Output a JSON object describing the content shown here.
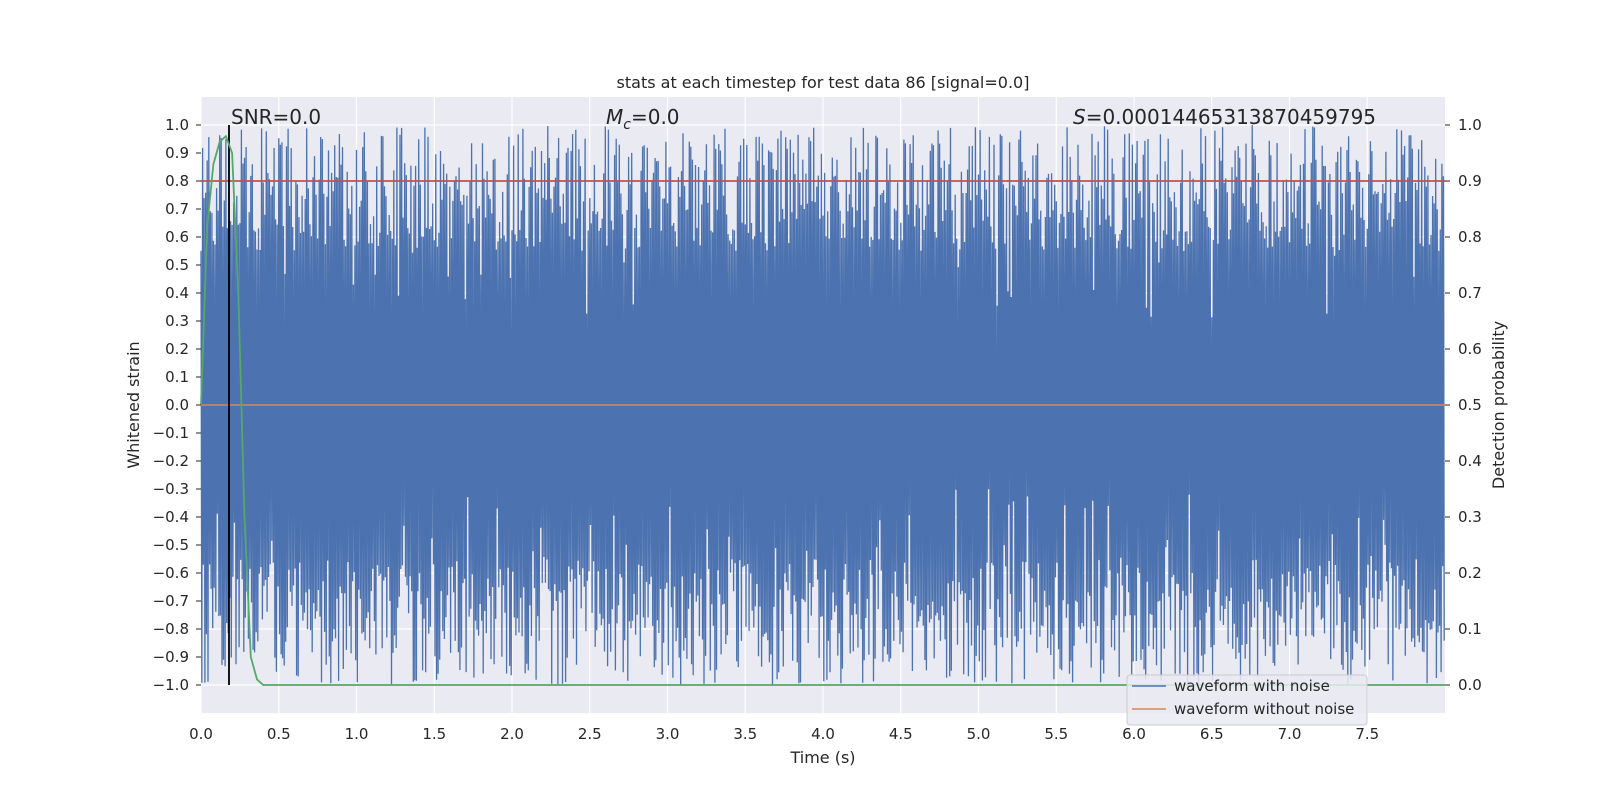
{
  "chart_data": {
    "type": "line",
    "title": "stats at each timestep for test data 86 [signal=0.0]",
    "xlabel": "Time (s)",
    "ylabel": "Whitened strain",
    "ylabel_right": "Detection probability",
    "xlim": [
      0.0,
      8.0
    ],
    "ylim": [
      -1.1,
      1.1
    ],
    "ylim_right": [
      -0.05,
      1.05
    ],
    "x_ticks": [
      0.0,
      0.5,
      1.0,
      1.5,
      2.0,
      2.5,
      3.0,
      3.5,
      4.0,
      4.5,
      5.0,
      5.5,
      6.0,
      6.5,
      7.0,
      7.5
    ],
    "x_tick_labels": [
      "0.0",
      "0.5",
      "1.0",
      "1.5",
      "2.0",
      "2.5",
      "3.0",
      "3.5",
      "4.0",
      "4.5",
      "5.0",
      "5.5",
      "6.0",
      "6.5",
      "7.0",
      "7.5"
    ],
    "y_ticks": [
      1.0,
      0.9,
      0.8,
      0.7,
      0.6,
      0.5,
      0.4,
      0.3,
      0.2,
      0.1,
      0.0,
      -0.1,
      -0.2,
      -0.3,
      -0.4,
      -0.5,
      -0.6,
      -0.7,
      -0.8,
      -0.9,
      -1.0
    ],
    "y_tick_labels": [
      "1.0",
      "0.9",
      "0.8",
      "0.7",
      "0.6",
      "0.5",
      "0.4",
      "0.3",
      "0.2",
      "0.1",
      "0.0",
      "−0.1",
      "−0.2",
      "−0.3",
      "−0.4",
      "−0.5",
      "−0.6",
      "−0.7",
      "−0.8",
      "−0.9",
      "−1.0"
    ],
    "y_right_ticks": [
      1.0,
      0.9,
      0.8,
      0.7,
      0.6,
      0.5,
      0.4,
      0.3,
      0.2,
      0.1,
      0.0
    ],
    "y_right_tick_labels": [
      "1.0",
      "0.9",
      "0.8",
      "0.7",
      "0.6",
      "0.5",
      "0.4",
      "0.3",
      "0.2",
      "0.1",
      "0.0"
    ],
    "annotations": {
      "snr": "SNR=0.0",
      "mc_symbol": "M",
      "mc_sub": "c",
      "mc_value": "=0.0",
      "s_symbol": "S",
      "s_value": "=0.00014465313870459795"
    },
    "threshold_right": 0.9,
    "marker_time": 0.18,
    "legend": {
      "position": "lower-right",
      "entries": [
        {
          "label": "waveform with noise",
          "color": "#4c72b0"
        },
        {
          "label": "waveform without noise",
          "color": "#dd8452"
        }
      ]
    },
    "series": [
      {
        "name": "waveform with noise",
        "color": "#4c72b0",
        "duration": 8.0,
        "samples": 1600,
        "amplitude_range": [
          -1.0,
          1.0
        ],
        "description_values": "whitened noisy strain, spans nearly full range"
      },
      {
        "name": "waveform without noise",
        "color": "#dd8452",
        "values": "constant 0.0"
      },
      {
        "name": "detection probability",
        "color": "#55a868",
        "axis": "right",
        "x": [
          0.0,
          0.04,
          0.08,
          0.12,
          0.16,
          0.2,
          0.24,
          0.28,
          0.32,
          0.36,
          0.4,
          8.0
        ],
        "y": [
          0.5,
          0.82,
          0.93,
          0.97,
          0.98,
          0.95,
          0.7,
          0.3,
          0.05,
          0.01,
          0.0,
          0.0
        ]
      },
      {
        "name": "threshold",
        "color": "#c44e52",
        "axis": "right",
        "value": 0.9
      }
    ],
    "colors": {
      "background": "#eaeaf2",
      "grid": "#ffffff",
      "noise": "#4c72b0",
      "clean": "#dd8452",
      "probability": "#55a868",
      "threshold": "#c44e52",
      "marker": "#000000"
    }
  }
}
